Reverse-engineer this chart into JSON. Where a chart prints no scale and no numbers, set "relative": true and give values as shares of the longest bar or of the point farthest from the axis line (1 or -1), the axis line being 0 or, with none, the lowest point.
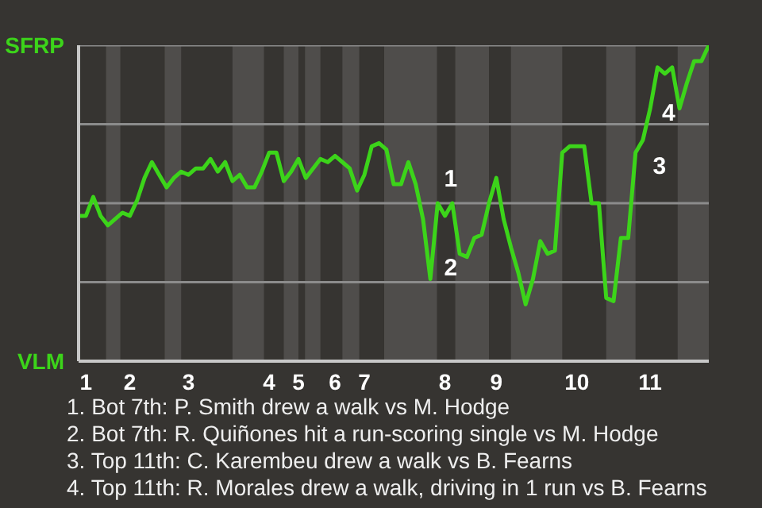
{
  "chart_data": {
    "type": "line",
    "relative": true,
    "categories": [
      null,
      "1",
      null,
      null,
      null,
      null,
      null,
      "2",
      null,
      null,
      null,
      null,
      null,
      null,
      null,
      "3",
      null,
      null,
      null,
      null,
      null,
      null,
      null,
      null,
      null,
      null,
      "4",
      null,
      null,
      null,
      "5",
      null,
      null,
      null,
      null,
      "6",
      null,
      null,
      null,
      "7",
      null,
      null,
      null,
      null,
      null,
      null,
      null,
      null,
      null,
      null,
      "8",
      null,
      null,
      null,
      null,
      null,
      null,
      "9",
      null,
      null,
      null,
      null,
      null,
      null,
      null,
      null,
      null,
      null,
      "10",
      null,
      null,
      null,
      null,
      null,
      null,
      null,
      null,
      null,
      "11",
      null,
      null,
      null,
      null,
      null,
      null,
      null,
      null
    ],
    "marker": "none",
    "line_style": "solid",
    "ref_lines": [
      {
        "axis": "y",
        "value": 0.25,
        "color": "#8c8c8c"
      },
      {
        "axis": "y",
        "value": 0.5,
        "color": "#8c8c8c"
      },
      {
        "axis": "y",
        "value": 0.75,
        "color": "#8c8c8c"
      },
      {
        "axis": "y",
        "value": 1,
        "color": "#8c8c8c"
      }
    ],
    "series": [
      {
        "color": "#3cd41a",
        "values": [
          0.46,
          0.46,
          0.52,
          0.46,
          0.43,
          0.45,
          0.47,
          0.46,
          0.51,
          0.58,
          0.63,
          0.59,
          0.55,
          0.58,
          0.6,
          0.59,
          0.61,
          0.61,
          0.64,
          0.6,
          0.63,
          0.57,
          0.59,
          0.55,
          0.55,
          0.6,
          0.66,
          0.66,
          0.57,
          0.6,
          0.64,
          0.58,
          0.61,
          0.64,
          0.63,
          0.65,
          0.63,
          0.61,
          0.54,
          0.59,
          0.68,
          0.69,
          0.67,
          0.56,
          0.56,
          0.63,
          0.56,
          0.45,
          0.26,
          0.5,
          0.46,
          0.5,
          0.34,
          0.33,
          0.39,
          0.4,
          0.5,
          0.58,
          0.45,
          0.36,
          0.28,
          0.18,
          0.26,
          0.38,
          0.34,
          0.35,
          0.66,
          0.68,
          0.68,
          0.68,
          0.5,
          0.5,
          0.2,
          0.19,
          0.39,
          0.39,
          0.66,
          0.7,
          0.8,
          0.93,
          0.91,
          0.93,
          0.8,
          0.88,
          0.95,
          0.95,
          1
        ]
      }
    ],
    "annotations": [
      "1",
      "2",
      "3",
      "4",
      "SFRP",
      "VLM",
      "1. Bot 7th: P. Smith drew a walk vs M. Hodge",
      "2. Bot 7th: R. Quiñones hit a run-scoring single vs M. Hodge",
      "3. Top 11th: C. Karembeu drew a walk vs B. Fearns",
      "4. Top 11th: R. Morales drew a walk, driving in 1 run vs B. Fearns"
    ]
  }
}
